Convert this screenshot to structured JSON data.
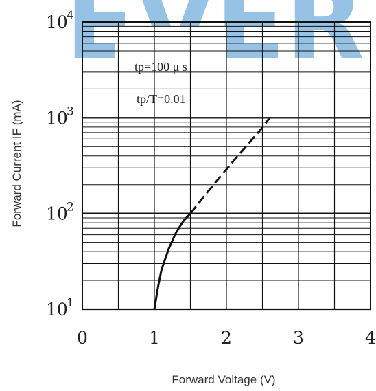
{
  "watermark": {
    "text": "EVER",
    "color": "#3f8fcf"
  },
  "chart_data": {
    "type": "line",
    "title": "",
    "xlabel": "Forward Voltage (V)",
    "ylabel": "Forward Current IF (mA)",
    "xlim": [
      0,
      4
    ],
    "ylim": [
      10,
      10000
    ],
    "yscale": "log",
    "grid": true,
    "x_ticks": [
      "0",
      "1",
      "2",
      "3",
      "4"
    ],
    "y_ticks": [
      {
        "base": "10",
        "exp": "1"
      },
      {
        "base": "10",
        "exp": "2"
      },
      {
        "base": "10",
        "exp": "3"
      },
      {
        "base": "10",
        "exp": "4"
      }
    ],
    "annotations": [
      "tp=100 μ s",
      "tp/T=0.01"
    ],
    "series": [
      {
        "style": "solid",
        "color": "#111111",
        "x": [
          1.0,
          1.05,
          1.1,
          1.2,
          1.3,
          1.4,
          1.5
        ],
        "y": [
          10,
          17,
          26,
          43,
          63,
          83,
          100
        ]
      },
      {
        "style": "dashed",
        "color": "#111111",
        "x": [
          1.5,
          1.7,
          1.9,
          2.1,
          2.3,
          2.5,
          2.6
        ],
        "y": [
          100,
          155,
          235,
          355,
          530,
          790,
          1000
        ]
      }
    ]
  }
}
